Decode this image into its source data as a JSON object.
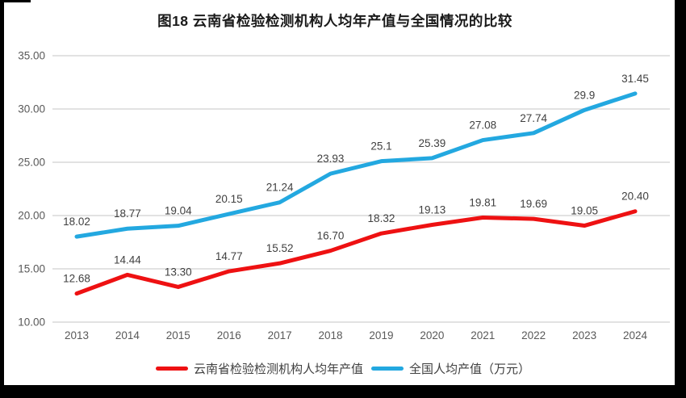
{
  "page": {
    "title": "图18  云南省检验检测机构人均年产值与全国情况的比较"
  },
  "chart_data": {
    "type": "line",
    "title": "图18  云南省检验检测机构人均年产值与全国情况的比较",
    "categories": [
      "2013",
      "2014",
      "2015",
      "2016",
      "2017",
      "2018",
      "2019",
      "2020",
      "2021",
      "2022",
      "2023",
      "2024"
    ],
    "series": [
      {
        "name": "云南省检验检测机构人均年产值",
        "color": "#ee1112",
        "values": [
          "12.68",
          "14.44",
          "13.30",
          "14.77",
          "15.52",
          "16.70",
          "18.32",
          "19.13",
          "19.81",
          "19.69",
          "19.05",
          "20.40"
        ]
      },
      {
        "name": "全国人均产值（万元）",
        "color": "#23a8e0",
        "values": [
          "18.02",
          "18.77",
          "19.04",
          "20.15",
          "21.24",
          "23.93",
          "25.1",
          "25.39",
          "27.08",
          "27.74",
          "29.9",
          "31.45"
        ]
      }
    ],
    "ylim": [
      10,
      35
    ],
    "yticks": [
      35,
      30,
      25,
      20,
      15,
      10
    ],
    "ytick_decimals": 2,
    "grid": "horizontal-only",
    "grid_color": "#d9d9d9",
    "axis_label_color": "#595959",
    "data_label_color": "#404040",
    "legend_position": "bottom"
  },
  "legend": {
    "items": [
      {
        "label": "云南省检验检测机构人均年产值",
        "color": "#ee1112"
      },
      {
        "label": "全国人均产值（万元）",
        "color": "#23a8e0"
      }
    ]
  }
}
